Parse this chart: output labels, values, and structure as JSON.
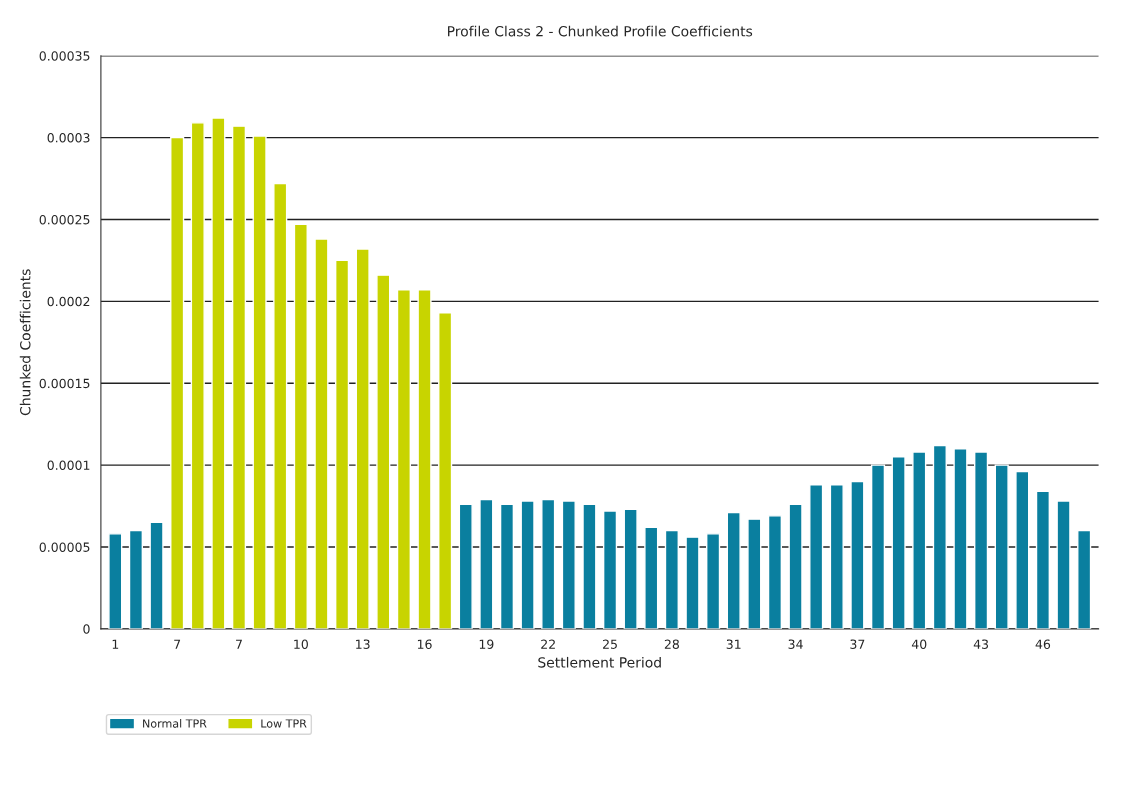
{
  "chart_data": {
    "type": "bar",
    "title": "Profile Class 2 - Chunked Profile Coefficients",
    "xlabel": "Settlement Period",
    "ylabel": "Chunked Coefficients",
    "categories": [
      "1",
      null,
      null,
      "7",
      null,
      null,
      "7",
      null,
      null,
      "10",
      null,
      null,
      "13",
      null,
      null,
      "16",
      null,
      null,
      "19",
      null,
      null,
      "22",
      null,
      null,
      "25",
      null,
      null,
      "28",
      null,
      null,
      "31",
      null,
      null,
      "34",
      null,
      null,
      "37",
      null,
      null,
      "40",
      null,
      null,
      "43",
      null,
      null,
      "46",
      null,
      null
    ],
    "series": [
      {
        "name": "Normal TPR",
        "color": "#0a7f9f",
        "values": [
          5.8e-05,
          6e-05,
          6.5e-05,
          null,
          null,
          null,
          null,
          null,
          null,
          null,
          null,
          null,
          null,
          null,
          null,
          null,
          null,
          7.6e-05,
          7.9e-05,
          7.6e-05,
          7.8e-05,
          7.9e-05,
          7.8e-05,
          7.6e-05,
          7.2e-05,
          7.3e-05,
          6.2e-05,
          6e-05,
          5.6e-05,
          5.8e-05,
          7.1e-05,
          6.7e-05,
          6.9e-05,
          7.6e-05,
          8.8e-05,
          8.8e-05,
          9e-05,
          0.0001,
          0.000105,
          0.000108,
          0.000112,
          0.00011,
          0.000108,
          0.0001,
          9.6e-05,
          8.4e-05,
          7.8e-05,
          6e-05
        ]
      },
      {
        "name": "Low TPR",
        "color": "#c8d400",
        "values": [
          null,
          null,
          null,
          0.0003,
          0.000309,
          0.000312,
          0.000307,
          0.000301,
          0.000272,
          0.000247,
          0.000238,
          0.000225,
          0.000232,
          0.000216,
          0.000207,
          0.000207,
          0.000193,
          null,
          null,
          null,
          null,
          null,
          null,
          null,
          null,
          null,
          null,
          null,
          null,
          null,
          null,
          null,
          null,
          null,
          null,
          null,
          null,
          null,
          null,
          null,
          null,
          null,
          null,
          null,
          null,
          null,
          null,
          null
        ]
      }
    ],
    "ylim": [
      0,
      0.00035
    ],
    "yticks": [
      0,
      {
        "value": 5e-05,
        "label": "0.00005"
      },
      0.0001,
      0.00015,
      0.0002,
      0.00025,
      0.0003,
      0.00035
    ],
    "grid": "y",
    "legend": "bottom left"
  }
}
